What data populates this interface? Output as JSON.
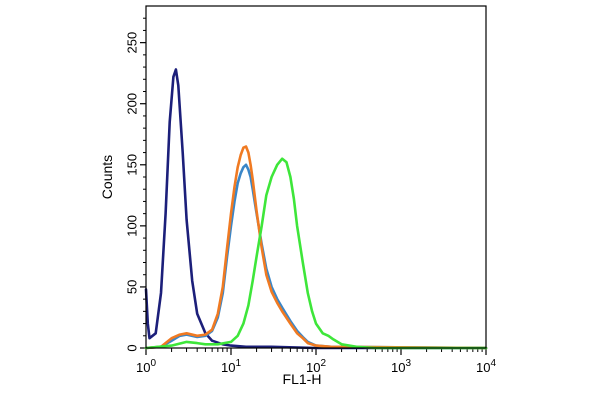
{
  "chart_data": {
    "type": "line",
    "title": "",
    "xlabel": "FL1-H",
    "ylabel": "Counts",
    "x_scale": "log",
    "xlim": [
      1,
      10000
    ],
    "ylim": [
      0,
      280
    ],
    "grid": false,
    "x_ticks": [
      {
        "value": 1,
        "base": "10",
        "exp": "0"
      },
      {
        "value": 10,
        "base": "10",
        "exp": "1"
      },
      {
        "value": 100,
        "base": "10",
        "exp": "2"
      },
      {
        "value": 1000,
        "base": "10",
        "exp": "3"
      },
      {
        "value": 10000,
        "base": "10",
        "exp": "4"
      }
    ],
    "y_ticks": [
      {
        "value": 0,
        "label": "0"
      },
      {
        "value": 50,
        "label": "50"
      },
      {
        "value": 100,
        "label": "100"
      },
      {
        "value": 150,
        "label": "150"
      },
      {
        "value": 200,
        "label": "200"
      },
      {
        "value": 250,
        "label": "250"
      }
    ],
    "series": [
      {
        "color": "#1c1f7a",
        "width": 1.6,
        "points": [
          [
            1,
            48
          ],
          [
            1.05,
            20
          ],
          [
            1.1,
            8
          ],
          [
            1.3,
            12
          ],
          [
            1.5,
            45
          ],
          [
            1.7,
            110
          ],
          [
            1.9,
            185
          ],
          [
            2.1,
            222
          ],
          [
            2.25,
            228
          ],
          [
            2.4,
            215
          ],
          [
            2.7,
            160
          ],
          [
            3,
            105
          ],
          [
            3.5,
            55
          ],
          [
            4,
            28
          ],
          [
            5,
            12
          ],
          [
            6,
            6
          ],
          [
            8,
            3
          ],
          [
            10,
            2
          ],
          [
            15,
            1
          ],
          [
            30,
            1
          ],
          [
            100,
            0
          ],
          [
            10000,
            0
          ]
        ]
      },
      {
        "color": "#3a86c8",
        "width": 2.6,
        "points": [
          [
            1,
            0
          ],
          [
            1.5,
            1
          ],
          [
            2,
            6
          ],
          [
            2.5,
            10
          ],
          [
            3,
            11
          ],
          [
            4,
            9
          ],
          [
            5,
            10
          ],
          [
            6,
            14
          ],
          [
            7,
            25
          ],
          [
            8,
            45
          ],
          [
            9,
            75
          ],
          [
            10,
            100
          ],
          [
            11,
            120
          ],
          [
            12,
            135
          ],
          [
            13,
            143
          ],
          [
            14,
            148
          ],
          [
            15,
            150
          ],
          [
            16,
            146
          ],
          [
            17,
            140
          ],
          [
            18,
            130
          ],
          [
            20,
            110
          ],
          [
            23,
            85
          ],
          [
            26,
            65
          ],
          [
            30,
            50
          ],
          [
            35,
            40
          ],
          [
            40,
            33
          ],
          [
            50,
            22
          ],
          [
            60,
            14
          ],
          [
            70,
            9
          ],
          [
            80,
            5
          ],
          [
            100,
            2
          ],
          [
            150,
            1
          ],
          [
            10000,
            0
          ]
        ]
      },
      {
        "color": "#f07a22",
        "width": 2.6,
        "points": [
          [
            1,
            0
          ],
          [
            1.5,
            1
          ],
          [
            2,
            8
          ],
          [
            2.5,
            11
          ],
          [
            3,
            12
          ],
          [
            4,
            10
          ],
          [
            5,
            11
          ],
          [
            6,
            15
          ],
          [
            7,
            28
          ],
          [
            8,
            50
          ],
          [
            9,
            82
          ],
          [
            10,
            110
          ],
          [
            11,
            132
          ],
          [
            12,
            148
          ],
          [
            13,
            158
          ],
          [
            14,
            164
          ],
          [
            15,
            165
          ],
          [
            16,
            160
          ],
          [
            17,
            150
          ],
          [
            18,
            138
          ],
          [
            20,
            112
          ],
          [
            23,
            82
          ],
          [
            26,
            60
          ],
          [
            30,
            46
          ],
          [
            35,
            37
          ],
          [
            40,
            30
          ],
          [
            50,
            20
          ],
          [
            60,
            12
          ],
          [
            70,
            8
          ],
          [
            80,
            4
          ],
          [
            100,
            2
          ],
          [
            150,
            1
          ],
          [
            10000,
            0
          ]
        ]
      },
      {
        "color": "#3ee63a",
        "width": 2.6,
        "points": [
          [
            1,
            0
          ],
          [
            2,
            2
          ],
          [
            3,
            5
          ],
          [
            4,
            4
          ],
          [
            5,
            3
          ],
          [
            7,
            3
          ],
          [
            10,
            5
          ],
          [
            12,
            10
          ],
          [
            14,
            20
          ],
          [
            16,
            35
          ],
          [
            18,
            55
          ],
          [
            20,
            75
          ],
          [
            23,
            100
          ],
          [
            26,
            125
          ],
          [
            30,
            140
          ],
          [
            35,
            150
          ],
          [
            40,
            155
          ],
          [
            45,
            152
          ],
          [
            50,
            140
          ],
          [
            55,
            122
          ],
          [
            60,
            100
          ],
          [
            70,
            70
          ],
          [
            80,
            45
          ],
          [
            90,
            30
          ],
          [
            100,
            20
          ],
          [
            120,
            12
          ],
          [
            140,
            10
          ],
          [
            160,
            7
          ],
          [
            200,
            3
          ],
          [
            300,
            1
          ],
          [
            500,
            0
          ],
          [
            10000,
            0
          ]
        ]
      }
    ]
  }
}
